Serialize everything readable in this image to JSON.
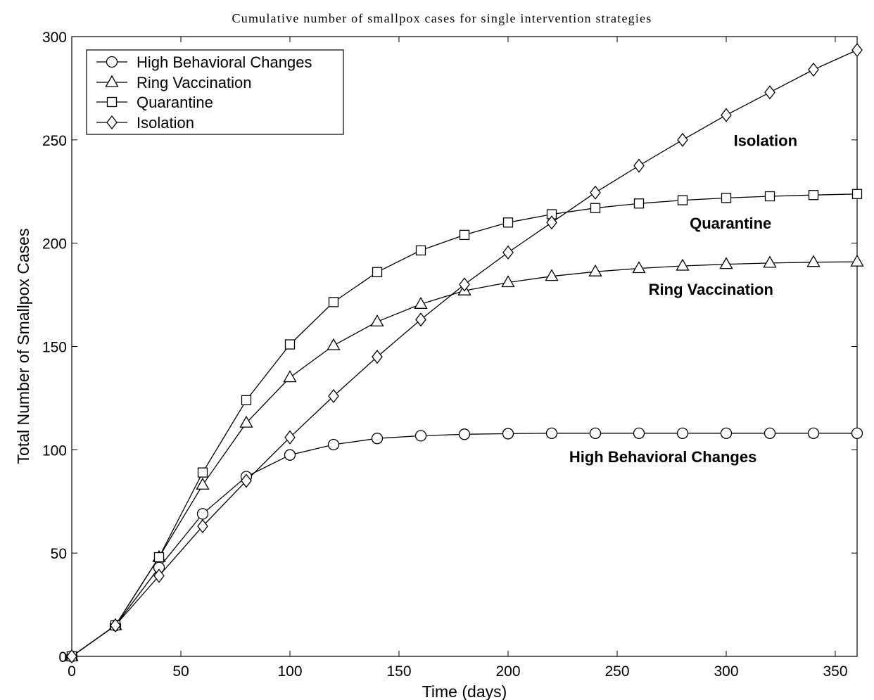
{
  "chart_data": {
    "type": "line",
    "title": "Cumulative number of smallpox cases for single intervention strategies",
    "xlabel": "Time (days)",
    "ylabel": "Total Number of Smallpox Cases",
    "xlim": [
      0,
      360
    ],
    "ylim": [
      0,
      300
    ],
    "xticks": [
      0,
      50,
      100,
      150,
      200,
      250,
      300,
      350
    ],
    "yticks": [
      0,
      50,
      100,
      150,
      200,
      250,
      300
    ],
    "grid": false,
    "legend_position": "top-left",
    "line_color": "#000000",
    "x": [
      0,
      20,
      40,
      60,
      80,
      100,
      120,
      140,
      160,
      180,
      200,
      220,
      240,
      260,
      280,
      300,
      320,
      340,
      360
    ],
    "series": [
      {
        "name": "High Behavioral Changes",
        "marker": "circle",
        "values": [
          0,
          15,
          43,
          69,
          87,
          97.5,
          102.5,
          105.5,
          106.8,
          107.5,
          107.8,
          108,
          108,
          108,
          108,
          108,
          108,
          108,
          108
        ]
      },
      {
        "name": "Ring Vaccination",
        "marker": "triangle",
        "values": [
          0,
          15,
          48,
          83,
          113,
          135,
          150.5,
          162,
          170.5,
          177,
          181,
          184,
          186.2,
          187.8,
          189,
          189.8,
          190.4,
          190.8,
          191
        ]
      },
      {
        "name": "Quarantine",
        "marker": "square",
        "values": [
          0,
          15,
          48,
          89,
          124,
          151,
          171.5,
          186,
          196.5,
          204,
          210,
          214,
          217,
          219.2,
          220.8,
          221.9,
          222.7,
          223.3,
          223.8
        ]
      },
      {
        "name": "Isolation",
        "marker": "diamond",
        "values": [
          0,
          15,
          39,
          63,
          85,
          106,
          126,
          145,
          163,
          180,
          195.5,
          210,
          224.5,
          237.5,
          250,
          262,
          273,
          284,
          293.5
        ]
      }
    ],
    "annotations": [
      {
        "text": "Isolation",
        "x": 318,
        "y": 247
      },
      {
        "text": "Quarantine",
        "x": 302,
        "y": 207
      },
      {
        "text": "Ring Vaccination",
        "x": 293,
        "y": 175
      },
      {
        "text": "High Behavioral Changes",
        "x": 271,
        "y": 94
      }
    ]
  }
}
